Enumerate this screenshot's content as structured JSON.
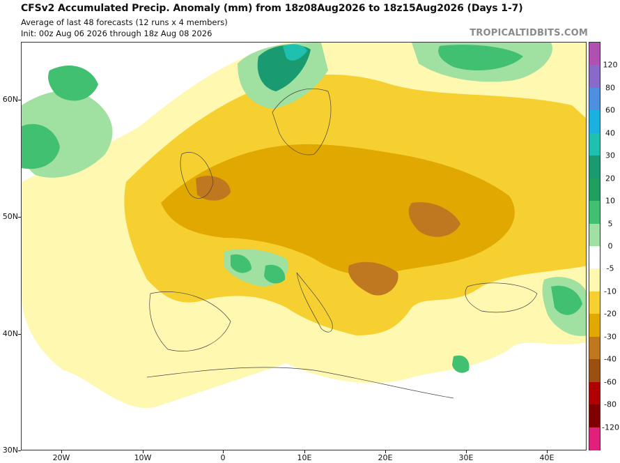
{
  "header": {
    "title": "CFSv2 Accumulated Precip. Anomaly (mm) from 18z08Aug2026 to 18z15Aug2026 (Days 1-7)",
    "subtitle1": "Average of last 48 forecasts (12 runs x 4 members)",
    "subtitle2": "Init: 00z Aug 06 2026 through 18z Aug 08 2026",
    "brand": "TROPICALTIDBITS.COM"
  },
  "axes": {
    "lat_labels": [
      "60N",
      "50N",
      "40N",
      "30N"
    ],
    "lon_labels": [
      "20W",
      "10W",
      "0",
      "10E",
      "20E",
      "30E",
      "40E"
    ]
  },
  "colorbar": {
    "labels": [
      "120",
      "80",
      "60",
      "40",
      "30",
      "20",
      "10",
      "5",
      "0",
      "-5",
      "-10",
      "-20",
      "-30",
      "-40",
      "-60",
      "-80",
      "-120"
    ],
    "colors": [
      "#b050b0",
      "#8a6ac8",
      "#4f8fe0",
      "#1ab0e0",
      "#20c0b0",
      "#1a9a70",
      "#20a060",
      "#40c070",
      "#a0e0a0",
      "#ffffff",
      "#fff8b0",
      "#f5d030",
      "#e0a800",
      "#c07820",
      "#9a5010",
      "#b00000",
      "#800000",
      "#e0207a"
    ]
  },
  "map": {
    "colors": {
      "light_green": "#a0e0a0",
      "green": "#40c070",
      "dark_green": "#1a9a70",
      "teal": "#20c0b0",
      "pale_yellow": "#fff8b0",
      "yellow": "#f5d030",
      "orange": "#e0a800",
      "brown": "#c07820",
      "ocean": "#ffffff"
    }
  }
}
